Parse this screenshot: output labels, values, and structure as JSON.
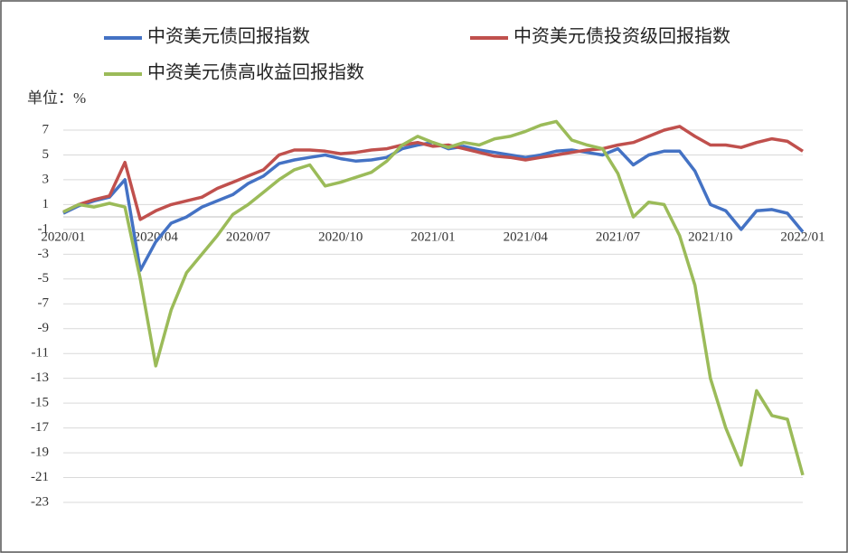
{
  "chart_data": {
    "type": "line",
    "unit_label": "单位：%",
    "categories": [
      "2020/01",
      null,
      null,
      null,
      null,
      null,
      "2020/04",
      null,
      null,
      null,
      null,
      null,
      "2020/07",
      null,
      null,
      null,
      null,
      null,
      "2020/10",
      null,
      null,
      null,
      null,
      null,
      "2021/01",
      null,
      null,
      null,
      null,
      null,
      "2021/04",
      null,
      null,
      null,
      null,
      null,
      "2021/07",
      null,
      null,
      null,
      null,
      null,
      "2021/10",
      null,
      null,
      null,
      null,
      null,
      "2022/01"
    ],
    "series": [
      {
        "name": "中资美元债回报指数",
        "color": "#4472c4",
        "values": [
          0.3,
          0.9,
          1.3,
          1.6,
          3.0,
          -4.3,
          -2.0,
          -0.5,
          0.0,
          0.8,
          1.3,
          1.8,
          2.7,
          3.3,
          4.3,
          4.6,
          4.8,
          5.0,
          4.7,
          4.5,
          4.6,
          4.8,
          5.5,
          5.8,
          6.0,
          5.5,
          5.7,
          5.4,
          5.2,
          5.0,
          4.8,
          5.0,
          5.3,
          5.4,
          5.2,
          5.0,
          5.5,
          4.2,
          5.0,
          5.3,
          5.3,
          3.7,
          1.0,
          0.5,
          -1.0,
          0.5,
          0.6,
          0.3,
          -1.2
        ]
      },
      {
        "name": "中资美元债投资级回报指数",
        "color": "#c0504d",
        "values": [
          0.4,
          1.0,
          1.4,
          1.7,
          4.4,
          -0.2,
          0.5,
          1.0,
          1.3,
          1.6,
          2.3,
          2.8,
          3.3,
          3.8,
          5.0,
          5.4,
          5.4,
          5.3,
          5.1,
          5.2,
          5.4,
          5.5,
          5.8,
          6.0,
          5.7,
          5.8,
          5.5,
          5.2,
          4.9,
          4.8,
          4.6,
          4.8,
          5.0,
          5.2,
          5.4,
          5.5,
          5.8,
          6.0,
          6.5,
          7.0,
          7.3,
          6.5,
          5.8,
          5.8,
          5.6,
          6.0,
          6.3,
          6.1,
          5.3
        ]
      },
      {
        "name": "中资美元债高收益回报指数",
        "color": "#9bbb59",
        "values": [
          0.4,
          1.0,
          0.8,
          1.1,
          0.8,
          -5.0,
          -12.0,
          -7.5,
          -4.5,
          -3.0,
          -1.5,
          0.2,
          1.0,
          2.0,
          3.0,
          3.8,
          4.2,
          2.5,
          2.8,
          3.2,
          3.6,
          4.5,
          5.8,
          6.5,
          6.0,
          5.6,
          6.0,
          5.8,
          6.3,
          6.5,
          6.9,
          7.4,
          7.7,
          6.2,
          5.8,
          5.5,
          3.5,
          0.0,
          1.2,
          1.0,
          -1.5,
          -5.5,
          -13.0,
          -17.0,
          -20.0,
          -14.0,
          -16.0,
          -16.3,
          -20.8
        ]
      }
    ],
    "ylim": [
      -23,
      7
    ],
    "yticks": [
      7,
      5,
      3,
      1,
      -1,
      -3,
      -5,
      -7,
      -9,
      -11,
      -13,
      -15,
      -17,
      -19,
      -21,
      -23
    ],
    "grid": true
  }
}
